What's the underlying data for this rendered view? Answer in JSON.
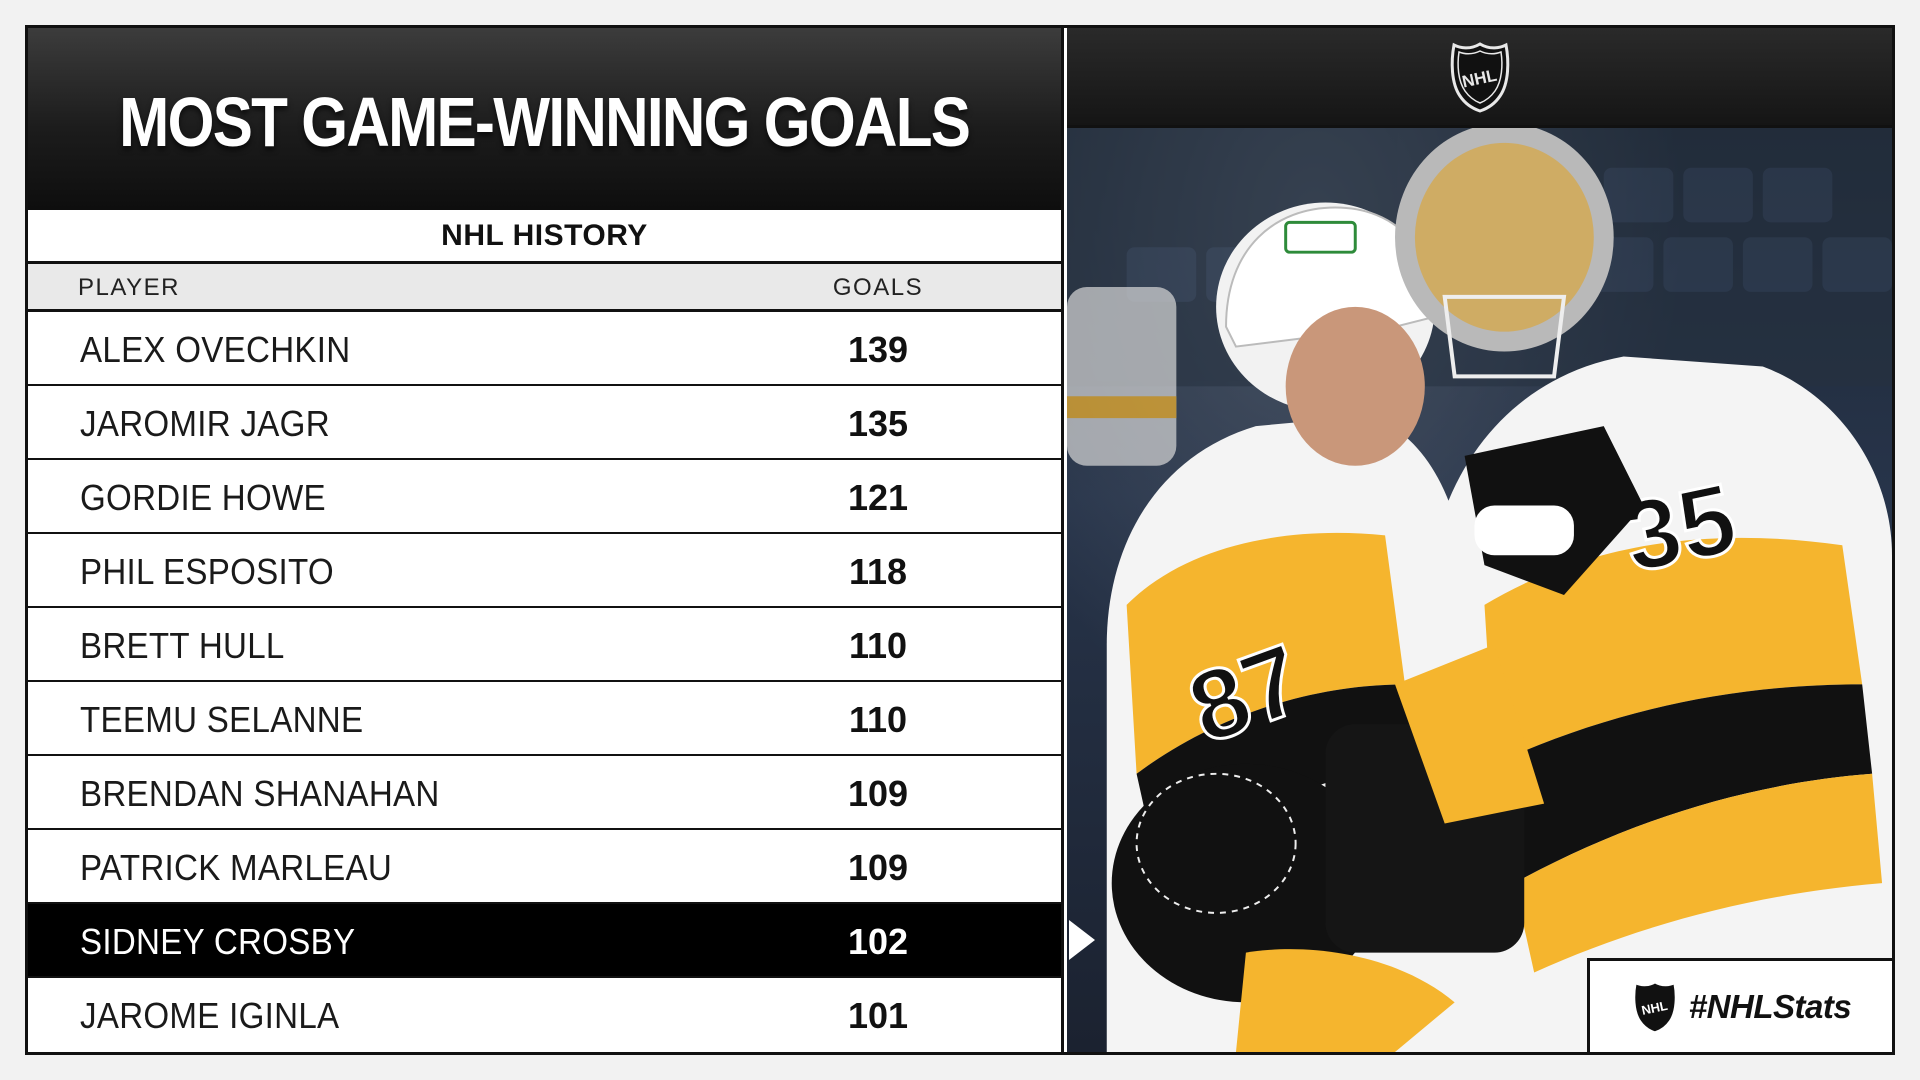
{
  "header": {
    "title": "MOST GAME-WINNING GOALS",
    "subtitle": "NHL HISTORY"
  },
  "table": {
    "columns": [
      "PLAYER",
      "GOALS"
    ],
    "rows": [
      {
        "player": "ALEX OVECHKIN",
        "goals": "139"
      },
      {
        "player": "JAROMIR JAGR",
        "goals": "135"
      },
      {
        "player": "GORDIE HOWE",
        "goals": "121"
      },
      {
        "player": "PHIL ESPOSITO",
        "goals": "118"
      },
      {
        "player": "BRETT HULL",
        "goals": "110"
      },
      {
        "player": "TEEMU SELANNE",
        "goals": "110"
      },
      {
        "player": "BRENDAN SHANAHAN",
        "goals": "109"
      },
      {
        "player": "PATRICK MARLEAU",
        "goals": "109"
      },
      {
        "player": "SIDNEY CROSBY",
        "goals": "102"
      },
      {
        "player": "JAROME IGINLA",
        "goals": "101"
      }
    ],
    "highlighted_row": 8
  },
  "branding": {
    "logo_icon": "nhl-shield-logo",
    "hashtag": "#NHLStats"
  },
  "photo": {
    "description_icon": "hockey-players-photo",
    "jersey_numbers": [
      "87",
      "35"
    ]
  },
  "colors": {
    "gold": "#f5b52e",
    "black": "#111111",
    "white": "#ffffff",
    "highlight": "#000000"
  }
}
